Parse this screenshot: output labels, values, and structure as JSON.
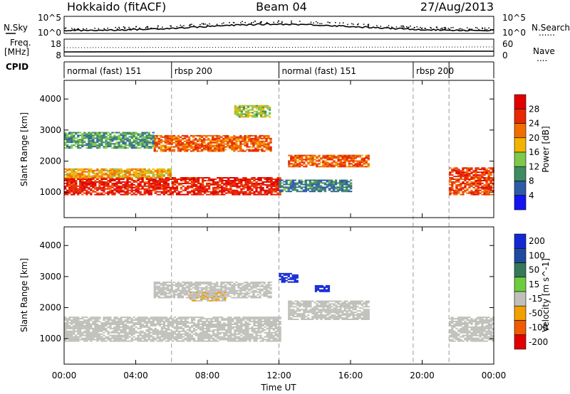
{
  "header": {
    "station": "Hokkaido (fitACF)",
    "beam": "Beam 04",
    "date": "27/Aug/2013"
  },
  "strip_labels": {
    "nsky": "N.Sky",
    "nsearch": "N.Search",
    "nsearch_style": "......",
    "freq": "Freq.",
    "freq_unit": "[MHz]",
    "nave": "Nave",
    "nave_style": "....",
    "cpid": "CPID"
  },
  "strip_ticks": {
    "noise_left": [
      "10^5",
      "10^0"
    ],
    "noise_right": [
      "10^5",
      "10^0"
    ],
    "freq_left": [
      "18",
      "8"
    ],
    "nave_right": [
      "60",
      "0"
    ]
  },
  "cpid_segments": [
    {
      "label": "normal (fast) 151",
      "start": 0,
      "end": 6
    },
    {
      "label": "rbsp 200",
      "start": 6,
      "end": 12
    },
    {
      "label": "normal (fast) 151",
      "start": 12,
      "end": 19.5
    },
    {
      "label": "rbsp 200",
      "start": 19.5,
      "end": 21.5
    },
    {
      "label": "",
      "start": 21.5,
      "end": 24
    }
  ],
  "x_axis": {
    "label": "Time UT",
    "ticks": [
      "00:00",
      "04:00",
      "08:00",
      "12:00",
      "16:00",
      "20:00",
      "00:00"
    ]
  },
  "colors": {
    "background": "#ffffff",
    "ground_scatter": "#c0c0bb",
    "power_scale": [
      "#1414f0",
      "#2e5aa8",
      "#3e8c60",
      "#7ec84a",
      "#f0b400",
      "#f06e00",
      "#e82800",
      "#e00000"
    ],
    "velocity_scale": [
      "#1428d2",
      "#1e4aa0",
      "#36785a",
      "#6ecd3c",
      "#c0c0bb",
      "#f0a000",
      "#f05a00",
      "#e00000"
    ]
  },
  "chart_data": [
    {
      "type": "heatmap",
      "name": "power",
      "ylabel": "Slant Range [km]",
      "xlim": [
        0,
        24
      ],
      "ylim": [
        180,
        4600
      ],
      "yticks": [
        1000,
        2000,
        3000,
        4000
      ],
      "colorbar": {
        "label": "Power [dB]",
        "ticks": [
          "28",
          "24",
          "20",
          "16",
          "12",
          "8",
          "4"
        ],
        "range": [
          0,
          30
        ]
      },
      "bands": [
        {
          "t_start": 0.0,
          "t_end": 12.0,
          "range_start": 900,
          "range_end": 1450,
          "value": 26
        },
        {
          "t_start": 0.0,
          "t_end": 6.0,
          "range_start": 1450,
          "range_end": 1750,
          "value": 18
        },
        {
          "t_start": 5.0,
          "t_end": 11.5,
          "range_start": 2300,
          "range_end": 2800,
          "value": 22
        },
        {
          "t_start": 0.0,
          "t_end": 5.0,
          "range_start": 2400,
          "range_end": 2900,
          "value": 10
        },
        {
          "t_start": 9.5,
          "t_end": 11.5,
          "range_start": 3400,
          "range_end": 3800,
          "value": 14
        },
        {
          "t_start": 12.5,
          "t_end": 17.0,
          "range_start": 1800,
          "range_end": 2200,
          "value": 22
        },
        {
          "t_start": 12.0,
          "t_end": 16.0,
          "range_start": 1000,
          "range_end": 1400,
          "value": 8
        },
        {
          "t_start": 21.5,
          "t_end": 24.0,
          "range_start": 900,
          "range_end": 1800,
          "value": 24
        }
      ]
    },
    {
      "type": "heatmap",
      "name": "velocity",
      "ylabel": "Slant Range [km]",
      "xlim": [
        0,
        24
      ],
      "ylim": [
        180,
        4600
      ],
      "yticks": [
        1000,
        2000,
        3000,
        4000
      ],
      "colorbar": {
        "label": "Velocity [m s^-1]",
        "ticks": [
          "200",
          "100",
          "50",
          "15",
          "-15",
          "-50",
          "-100",
          "-200"
        ],
        "range": [
          -250,
          250
        ]
      },
      "bands": [
        {
          "t_start": 0.0,
          "t_end": 12.0,
          "range_start": 900,
          "range_end": 1700,
          "value": 0
        },
        {
          "t_start": 5.0,
          "t_end": 11.5,
          "range_start": 2300,
          "range_end": 2800,
          "value": 0
        },
        {
          "t_start": 7.0,
          "t_end": 9.0,
          "range_start": 2200,
          "range_end": 2500,
          "value": -60
        },
        {
          "t_start": 12.0,
          "t_end": 13.0,
          "range_start": 2800,
          "range_end": 3100,
          "value": 220
        },
        {
          "t_start": 14.0,
          "t_end": 14.8,
          "range_start": 2500,
          "range_end": 2700,
          "value": 220
        },
        {
          "t_start": 12.5,
          "t_end": 17.0,
          "range_start": 1600,
          "range_end": 2200,
          "value": 0
        },
        {
          "t_start": 21.5,
          "t_end": 24.0,
          "range_start": 900,
          "range_end": 1700,
          "value": 0
        }
      ]
    }
  ]
}
